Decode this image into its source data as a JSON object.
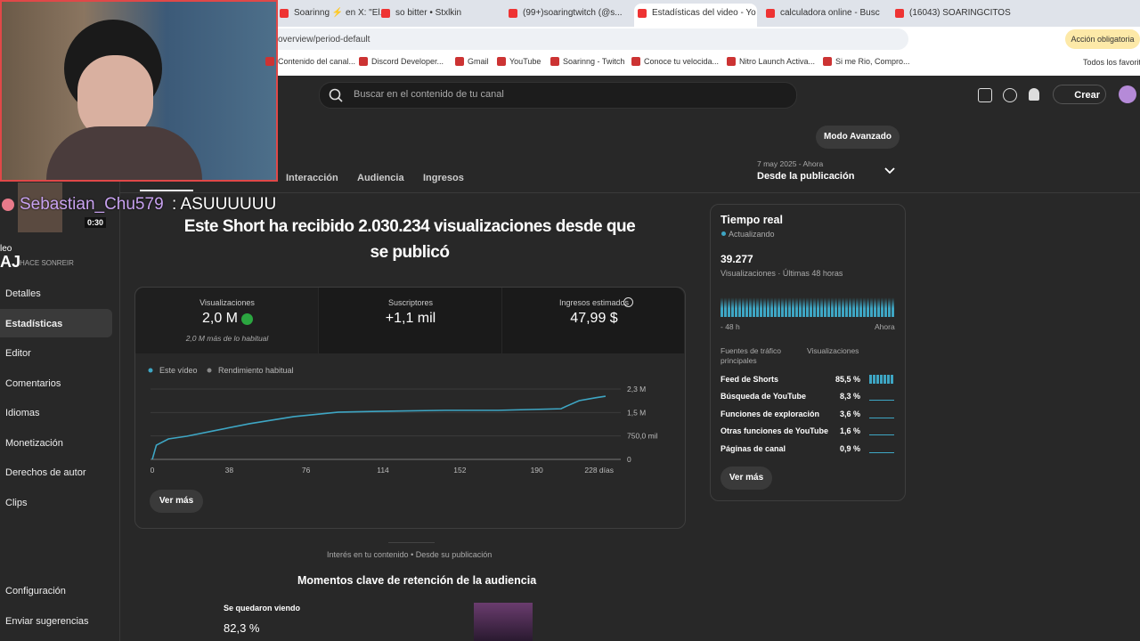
{
  "browser": {
    "tabs": [
      "Soarinng ⚡ en X: \"El...",
      "so bitter • Stxlkin",
      "(99+)soaringtwitch (@s...",
      "Estadísticas del video - Yo",
      "calculadora online - Busc",
      "(16043) SOARINGCITOS -"
    ],
    "url": "overview/period-default",
    "action": "Acción obligatoria",
    "bookmarks": [
      "Contenido del canal...",
      "Discord Developer...",
      "Gmail",
      "YouTube",
      "Soarinng - Twitch",
      "Conoce tu velocida...",
      "Nitro Launch Activa...",
      "Si me Rio, Compro..."
    ],
    "all_bookmarks": "Todos los favoritos"
  },
  "studio": {
    "search": "Buscar en el contenido de tu canal",
    "create": "Crear",
    "advanced": "Modo Avanzado",
    "date_range": "7 may 2025 - Ahora",
    "period": "Desde la publicación",
    "tabs": [
      "Interacción",
      "Audiencia",
      "Ingresos"
    ]
  },
  "overlay": {
    "user": "Sebastian_Chu579",
    "message": ": ASUUUUUU",
    "timer": "0:30"
  },
  "sidebar": {
    "label": "leo",
    "channel": "AJ",
    "video": "HACE SONREIR",
    "items": [
      "Detalles",
      "Estadísticas",
      "Editor",
      "Comentarios",
      "Idiomas",
      "Monetización",
      "Derechos de autor",
      "Clips"
    ],
    "settings": "Configuración",
    "feedback": "Enviar sugerencias"
  },
  "headline": "Este Short ha recibido 2.030.234 visualizaciones desde que se publicó",
  "metrics": [
    {
      "label": "Visualizaciones",
      "value": "2,0 M",
      "note": "2,0 M más de lo habitual"
    },
    {
      "label": "Suscriptores",
      "value": "+1,1 mil"
    },
    {
      "label": "Ingresos estimados",
      "value": "47,99 $"
    }
  ],
  "chart": {
    "type": "line",
    "legend": [
      "Este vídeo",
      "Rendimiento habitual"
    ],
    "x": [
      0,
      2,
      8,
      17,
      30,
      48,
      70,
      92,
      114,
      145,
      171,
      202,
      205,
      211,
      219,
      224
    ],
    "values": [
      0,
      455000,
      655000,
      740000,
      910000,
      1140000,
      1370000,
      1510000,
      1540000,
      1570000,
      1570000,
      1620000,
      1710000,
      1880000,
      1970000,
      2020000
    ],
    "color": "#3ea6c4",
    "xlim": [
      0,
      228
    ],
    "xticks": [
      0,
      38,
      76,
      114,
      152,
      190,
      {
        "value": 228,
        "label": "228 días"
      }
    ],
    "ylim": [
      0,
      2250000
    ],
    "yticks": [
      0,
      {
        "value": 750000,
        "label": "750,0 mil"
      },
      {
        "value": 1500000,
        "label": "1,5 M"
      },
      {
        "value": 2250000,
        "label": "2,3 M"
      }
    ],
    "grid": true
  },
  "more": "Ver más",
  "realtime": {
    "title": "Tiempo real",
    "status": "Actualizando",
    "count": "39.277",
    "caption": "Visualizaciones · Últimas 48 horas",
    "start": "- 48 h",
    "end": "Ahora",
    "col1": "Fuentes de tráfico principales",
    "col2": "Visualizaciones",
    "rows": [
      [
        "Feed de Shorts",
        "85,5 %"
      ],
      [
        "Búsqueda de YouTube",
        "8,3 %"
      ],
      [
        "Funciones de exploración",
        "3,6 %"
      ],
      [
        "Otras funciones de YouTube",
        "1,6 %"
      ],
      [
        "Páginas de canal",
        "0,9 %"
      ]
    ],
    "more": "Ver más"
  },
  "bottom": {
    "interest": "Interés en tu contenido • Desde su publicación",
    "retention_title": "Momentos clave de retención de la audiencia",
    "stayed": "Se quedaron viendo",
    "stayed_value": "82,3 %"
  }
}
